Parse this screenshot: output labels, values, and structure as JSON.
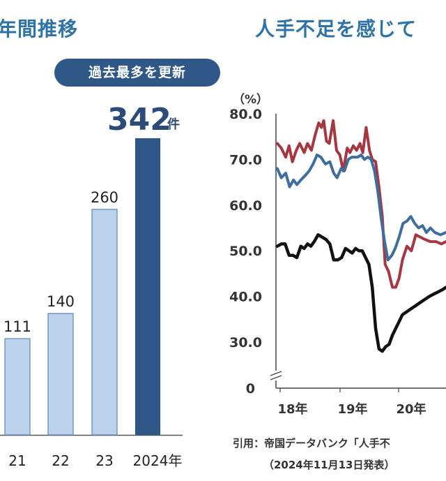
{
  "left_panel": {
    "title": "年間推移",
    "badge": "過去最多を更新",
    "colors": {
      "past": "#bcd2ea",
      "past_stroke": "#5a86bb",
      "current": "#2f5889",
      "badge_bg": "#2f5889",
      "title": "#2e73a8"
    }
  },
  "right_panel": {
    "title": "人手不足を感じて",
    "unit_label": "（%）",
    "citation_line1": "引用：帝国データバンク「人手不",
    "citation_line2": "（2024年11月13日発表）",
    "colors": {
      "red": "#a6363f",
      "blue": "#3f6e9e",
      "black": "#111111",
      "title": "#2e73a8"
    }
  },
  "chart_data": [
    {
      "type": "bar",
      "title": "年間推移",
      "categories": [
        "21",
        "22",
        "23",
        "2024年"
      ],
      "values": [
        111,
        140,
        260,
        342
      ],
      "value_labels": [
        "111",
        "140",
        "260",
        "342"
      ],
      "highlight_unit": "件",
      "ylim": [
        0,
        342
      ]
    },
    {
      "type": "line",
      "title": "人手不足を感じて",
      "ylabel": "（%）",
      "ylim": [
        0,
        80
      ],
      "y_ticks": [
        "0",
        "30.0",
        "40.0",
        "50.0",
        "60.0",
        "70.0",
        "80.0"
      ],
      "x_ticks": [
        "18年",
        "19年",
        "20年"
      ],
      "xlim": [
        0,
        30.2
      ],
      "series": [
        {
          "name": "red",
          "color": "#a6363f",
          "x": [
            0,
            0.7,
            1.5,
            2.1,
            2.7,
            3.4,
            4.0,
            4.8,
            5.4,
            6.1,
            6.8,
            7.4,
            7.9,
            8.3,
            8.8,
            9.3,
            10.0,
            10.6,
            11.2,
            11.8,
            12.5,
            13.0,
            13.6,
            14.2,
            14.8,
            15.3,
            15.9,
            16.5,
            17.0,
            17.6,
            18.2,
            18.8,
            19.3,
            19.9,
            20.6,
            21.2,
            21.8,
            22.4,
            23.2,
            24.0,
            24.8,
            25.6,
            26.4,
            27.4,
            28.4,
            29.4,
            30.2
          ],
          "y": [
            73.5,
            72.5,
            70.5,
            73.0,
            69.5,
            72.0,
            73.5,
            71.5,
            73.5,
            72.0,
            75.5,
            78.0,
            77.0,
            78.5,
            74.0,
            73.5,
            78.5,
            72.0,
            71.0,
            67.5,
            72.5,
            71.5,
            73.0,
            72.0,
            73.5,
            71.5,
            77.0,
            72.0,
            70.0,
            69.5,
            64.0,
            57.5,
            47.0,
            45.5,
            42.0,
            42.0,
            44.0,
            48.0,
            51.0,
            50.0,
            53.5,
            53.0,
            52.5,
            52.0,
            52.0,
            51.5,
            52.0
          ]
        },
        {
          "name": "blue",
          "color": "#3f6e9e",
          "x": [
            0,
            0.7,
            1.5,
            2.2,
            2.9,
            3.5,
            4.2,
            5.0,
            5.7,
            6.4,
            7.1,
            7.8,
            8.6,
            9.4,
            10.1,
            10.7,
            11.4,
            12.0,
            12.7,
            13.3,
            13.8,
            14.4,
            15.0,
            15.6,
            16.2,
            16.8,
            17.4,
            18.0,
            18.6,
            19.2,
            19.8,
            20.5,
            21.1,
            21.8,
            22.5,
            23.2,
            23.9,
            24.6,
            25.3,
            26.0,
            26.7,
            27.4,
            28.2,
            29.2,
            30.2
          ],
          "y": [
            68.0,
            66.0,
            67.0,
            64.0,
            65.5,
            64.5,
            65.5,
            66.5,
            67.5,
            69.0,
            71.0,
            70.5,
            69.0,
            69.5,
            67.0,
            66.0,
            68.0,
            67.5,
            70.0,
            70.5,
            70.5,
            70.5,
            71.0,
            70.0,
            70.5,
            70.0,
            67.5,
            63.0,
            57.0,
            52.0,
            48.0,
            49.0,
            50.5,
            53.0,
            56.0,
            56.5,
            57.5,
            56.0,
            55.0,
            55.5,
            54.0,
            55.0,
            54.0,
            53.5,
            54.0
          ]
        },
        {
          "name": "black",
          "color": "#111111",
          "x": [
            0,
            0.7,
            1.4,
            2.1,
            2.8,
            3.5,
            4.2,
            4.8,
            5.4,
            6.0,
            6.6,
            7.3,
            8.0,
            8.7,
            9.4,
            10.1,
            10.8,
            11.5,
            12.2,
            12.8,
            13.4,
            14.0,
            14.6,
            15.2,
            15.8,
            16.4,
            17.0,
            17.6,
            18.2,
            18.8,
            19.4,
            20.0,
            20.6,
            21.2,
            21.8,
            22.4,
            23.0,
            23.6,
            24.2,
            24.8,
            25.4,
            26.0,
            26.6,
            27.2,
            28.0,
            28.8,
            29.6,
            30.2
          ],
          "y": [
            51.0,
            51.5,
            51.5,
            49.0,
            49.0,
            48.5,
            51.0,
            50.5,
            51.5,
            51.0,
            52.0,
            53.5,
            53.0,
            52.5,
            51.5,
            48.0,
            48.0,
            48.5,
            50.5,
            50.0,
            49.5,
            50.5,
            50.0,
            50.0,
            48.5,
            47.0,
            42.0,
            33.0,
            28.5,
            28.0,
            29.0,
            29.5,
            31.5,
            33.0,
            34.5,
            36.0,
            36.5,
            37.0,
            37.5,
            38.0,
            38.5,
            39.0,
            39.5,
            40.0,
            40.5,
            41.0,
            41.5,
            42.0
          ]
        }
      ]
    }
  ]
}
